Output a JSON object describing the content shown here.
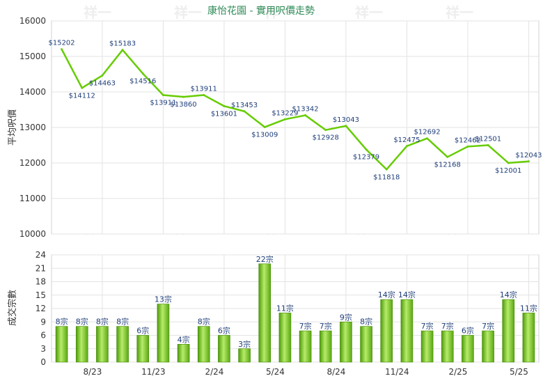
{
  "watermark": "祥一",
  "chart_data": [
    {
      "type": "line",
      "title": "康怡花園 - 實用呎價走勢",
      "ylabel": "平均呎價",
      "ylim": [
        10000,
        16000
      ],
      "yticks": [
        10000,
        11000,
        12000,
        13000,
        14000,
        15000,
        16000
      ],
      "values": [
        15202,
        14112,
        14463,
        15183,
        14516,
        13911,
        13860,
        13911,
        13601,
        13453,
        13009,
        13229,
        13342,
        12928,
        13043,
        12379,
        11818,
        12475,
        12692,
        12168,
        12462,
        12501,
        12001,
        12043
      ],
      "point_labels": [
        "$15202",
        "$14112",
        "$14463",
        "$15183",
        "$14516",
        "$13911",
        "$13860",
        "$13911",
        "$13601",
        "$13453",
        "$13009",
        "$13229",
        "$13342",
        "$12928",
        "$13043",
        "$12379",
        "$11818",
        "$12475",
        "$12692",
        "$12168",
        "$12462",
        "$12501",
        "$12001",
        "$12043"
      ],
      "color": "#66cc00"
    },
    {
      "type": "bar",
      "ylabel": "成交宗數",
      "ylim": [
        0,
        24
      ],
      "yticks": [
        0,
        3,
        6,
        9,
        12,
        15,
        18,
        21,
        24
      ],
      "values": [
        8,
        8,
        8,
        8,
        6,
        13,
        4,
        8,
        6,
        3,
        22,
        11,
        7,
        7,
        9,
        8,
        14,
        14,
        7,
        7,
        6,
        7,
        14,
        11
      ],
      "bar_labels": [
        "8宗",
        "8宗",
        "8宗",
        "8宗",
        "6宗",
        "13宗",
        "4宗",
        "8宗",
        "6宗",
        "3宗",
        "22宗",
        "11宗",
        "7宗",
        "7宗",
        "9宗",
        "8宗",
        "14宗",
        "14宗",
        "7宗",
        "7宗",
        "6宗",
        "7宗",
        "14宗",
        "11宗"
      ],
      "xtick_labels": [
        "8/23",
        "11/23",
        "2/24",
        "5/24",
        "8/24",
        "11/24",
        "2/25",
        "5/25"
      ],
      "xtick_index": [
        2,
        5,
        8,
        11,
        14,
        17,
        20,
        23
      ],
      "color": "#66bb11"
    }
  ]
}
